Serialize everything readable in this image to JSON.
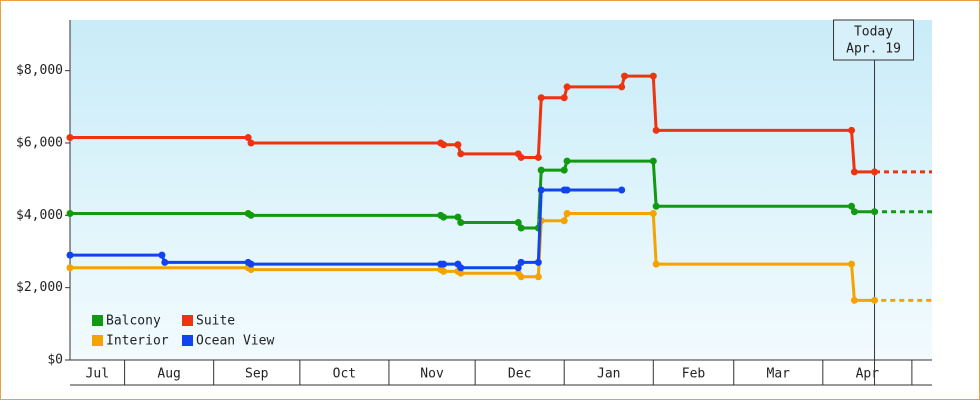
{
  "chart_data": {
    "type": "line",
    "step_markers": true,
    "ylim": [
      0,
      9400
    ],
    "yticks": [
      {
        "value": 0,
        "label": "$0"
      },
      {
        "value": 2000,
        "label": "$2,000"
      },
      {
        "value": 4000,
        "label": "$4,000"
      },
      {
        "value": 6000,
        "label": "$6,000"
      },
      {
        "value": 8000,
        "label": "$8,000"
      }
    ],
    "xlim": [
      12,
      312
    ],
    "xticks": [
      {
        "value": 0,
        "label": "Jul"
      },
      {
        "value": 31,
        "label": "Aug"
      },
      {
        "value": 62,
        "label": "Sep"
      },
      {
        "value": 92,
        "label": "Oct"
      },
      {
        "value": 123,
        "label": "Nov"
      },
      {
        "value": 153,
        "label": "Dec"
      },
      {
        "value": 184,
        "label": "Jan"
      },
      {
        "value": 215,
        "label": "Feb"
      },
      {
        "value": 243,
        "label": "Mar"
      },
      {
        "value": 274,
        "label": "Apr"
      }
    ],
    "legend": "lower left",
    "annotation": {
      "lines": [
        "Today",
        "Apr. 19"
      ],
      "x": 292
    },
    "series": [
      {
        "name": "Balcony",
        "color": "#119911",
        "x": [
          12,
          74,
          75,
          141,
          142,
          147,
          148,
          168,
          169,
          175,
          176,
          184,
          185,
          215,
          216,
          284,
          285,
          292,
          312
        ],
        "values": [
          4050,
          4050,
          4000,
          4000,
          3950,
          3950,
          3800,
          3800,
          3650,
          3650,
          5250,
          5250,
          5500,
          5500,
          4250,
          4250,
          4100,
          4100,
          4100
        ]
      },
      {
        "name": "Suite",
        "color": "#ee3311",
        "x": [
          12,
          74,
          75,
          141,
          142,
          147,
          148,
          168,
          169,
          175,
          176,
          184,
          185,
          204,
          205,
          215,
          216,
          284,
          285,
          292,
          312
        ],
        "values": [
          6150,
          6150,
          6000,
          6000,
          5950,
          5950,
          5700,
          5700,
          5600,
          5600,
          7250,
          7250,
          7550,
          7550,
          7850,
          7850,
          6350,
          6350,
          5200,
          5200,
          5200
        ]
      },
      {
        "name": "Interior",
        "color": "#f5a300",
        "x": [
          12,
          74,
          75,
          141,
          142,
          147,
          148,
          168,
          169,
          175,
          176,
          184,
          185,
          215,
          216,
          284,
          285,
          292,
          312
        ],
        "values": [
          2550,
          2550,
          2500,
          2500,
          2450,
          2450,
          2400,
          2400,
          2300,
          2300,
          3850,
          3850,
          4050,
          4050,
          2650,
          2650,
          1650,
          1650,
          1650
        ]
      },
      {
        "name": "Ocean View",
        "color": "#1144ee",
        "x": [
          12,
          44,
          45,
          74,
          75,
          141,
          142,
          147,
          148,
          168,
          169,
          175,
          176,
          184,
          185,
          204
        ],
        "values": [
          2900,
          2900,
          2700,
          2700,
          2650,
          2650,
          2650,
          2650,
          2550,
          2550,
          2700,
          2700,
          4700,
          4700,
          4700,
          4700
        ]
      }
    ]
  }
}
